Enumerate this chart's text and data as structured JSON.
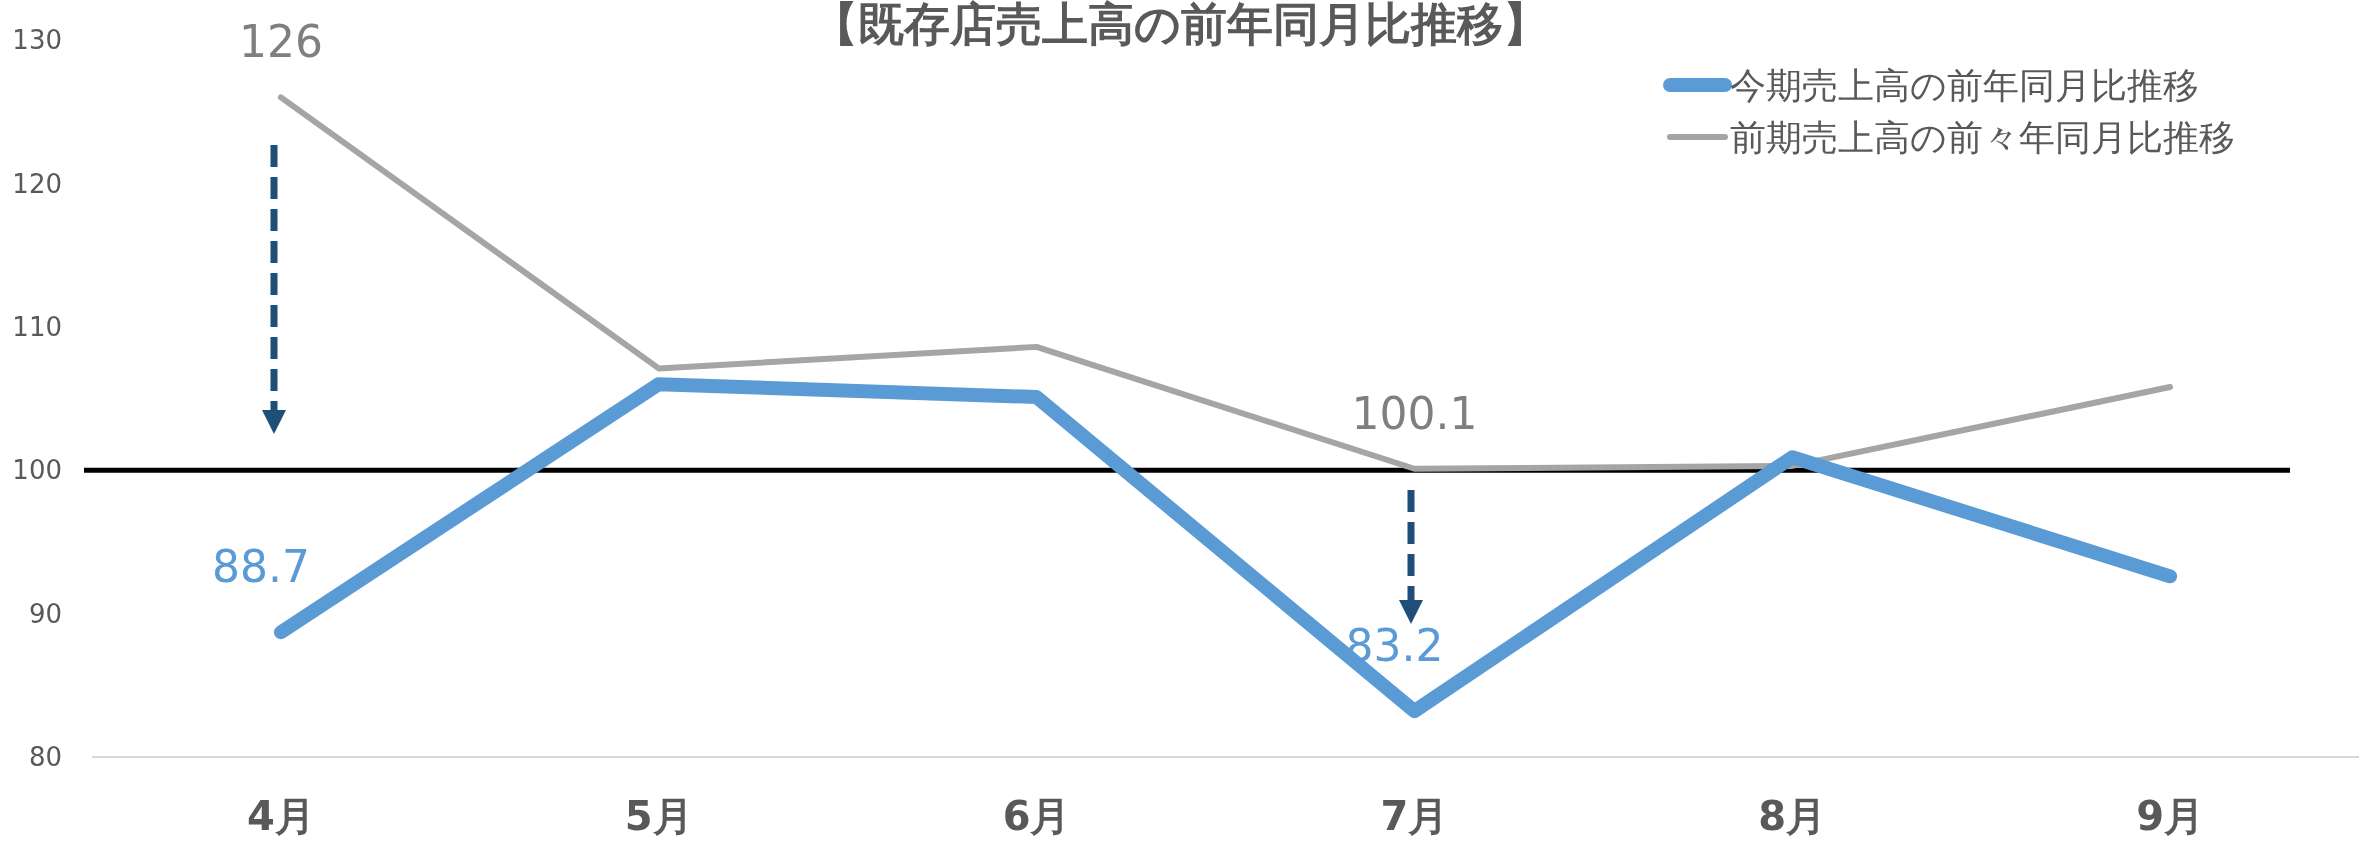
{
  "chart_data": {
    "type": "line",
    "title": "【既存店売上高の前年同月比推移】",
    "categories": [
      "4月",
      "5月",
      "6月",
      "7月",
      "8月",
      "9月"
    ],
    "series": [
      {
        "name": "今期売上高の前年同月比推移",
        "color": "#5b9bd5",
        "values": [
          88.7,
          106.0,
          105.1,
          83.2,
          100.9,
          92.6
        ],
        "value_labels": [
          "88.7",
          null,
          null,
          "83.2",
          null,
          null
        ]
      },
      {
        "name": "前期売上高の前々年同月比推移",
        "color": "#a5a5a5",
        "values": [
          126,
          107.1,
          108.6,
          100.1,
          100.3,
          105.8
        ],
        "value_labels": [
          "126",
          null,
          null,
          "100.1",
          null,
          null
        ]
      }
    ],
    "ylim": [
      80,
      130
    ],
    "yticks": [
      80,
      90,
      100,
      110,
      120,
      130
    ],
    "grid": false,
    "legend": "top right",
    "marker": "none",
    "ref_lines": [
      {
        "axis": "y",
        "value": 100,
        "color": "#000000"
      }
    ]
  }
}
